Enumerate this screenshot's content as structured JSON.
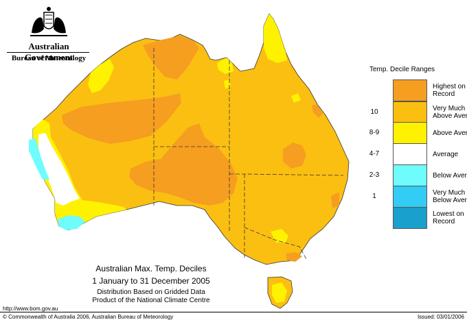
{
  "header": {
    "government": "Australian Government",
    "bureau": "Bureau of Meteorology"
  },
  "legend": {
    "title": "Temp. Decile Ranges",
    "items": [
      {
        "range": "",
        "label_line1": "Highest on",
        "label_line2": "Record",
        "color": "#f59e20"
      },
      {
        "range": "10",
        "label_line1": "Very Much",
        "label_line2": "Above Average",
        "color": "#fbbf11"
      },
      {
        "range": "8-9",
        "label_line1": "Above Average",
        "label_line2": "",
        "color": "#fef200"
      },
      {
        "range": "4-7",
        "label_line1": "Average",
        "label_line2": "",
        "color": "#ffffff"
      },
      {
        "range": "2-3",
        "label_line1": "Below Average",
        "label_line2": "",
        "color": "#6ffcfc"
      },
      {
        "range": "1",
        "label_line1": "Very Much",
        "label_line2": "Below Average",
        "color": "#33ccf5"
      },
      {
        "range": "",
        "label_line1": "Lowest on",
        "label_line2": "Record",
        "color": "#1aa0cc"
      }
    ]
  },
  "caption": {
    "title": "Australian Max. Temp. Deciles",
    "period": "1 January to 31 December 2005",
    "line1": "Distribution Based on Gridded Data",
    "line2": "Product of the National Climate Centre"
  },
  "footer": {
    "url": "http://www.bom.gov.au",
    "copyright": "© Commonwealth of Australia 2006, Australian Bureau of Meteorology",
    "issued": "Issued: 03/01/2006"
  }
}
